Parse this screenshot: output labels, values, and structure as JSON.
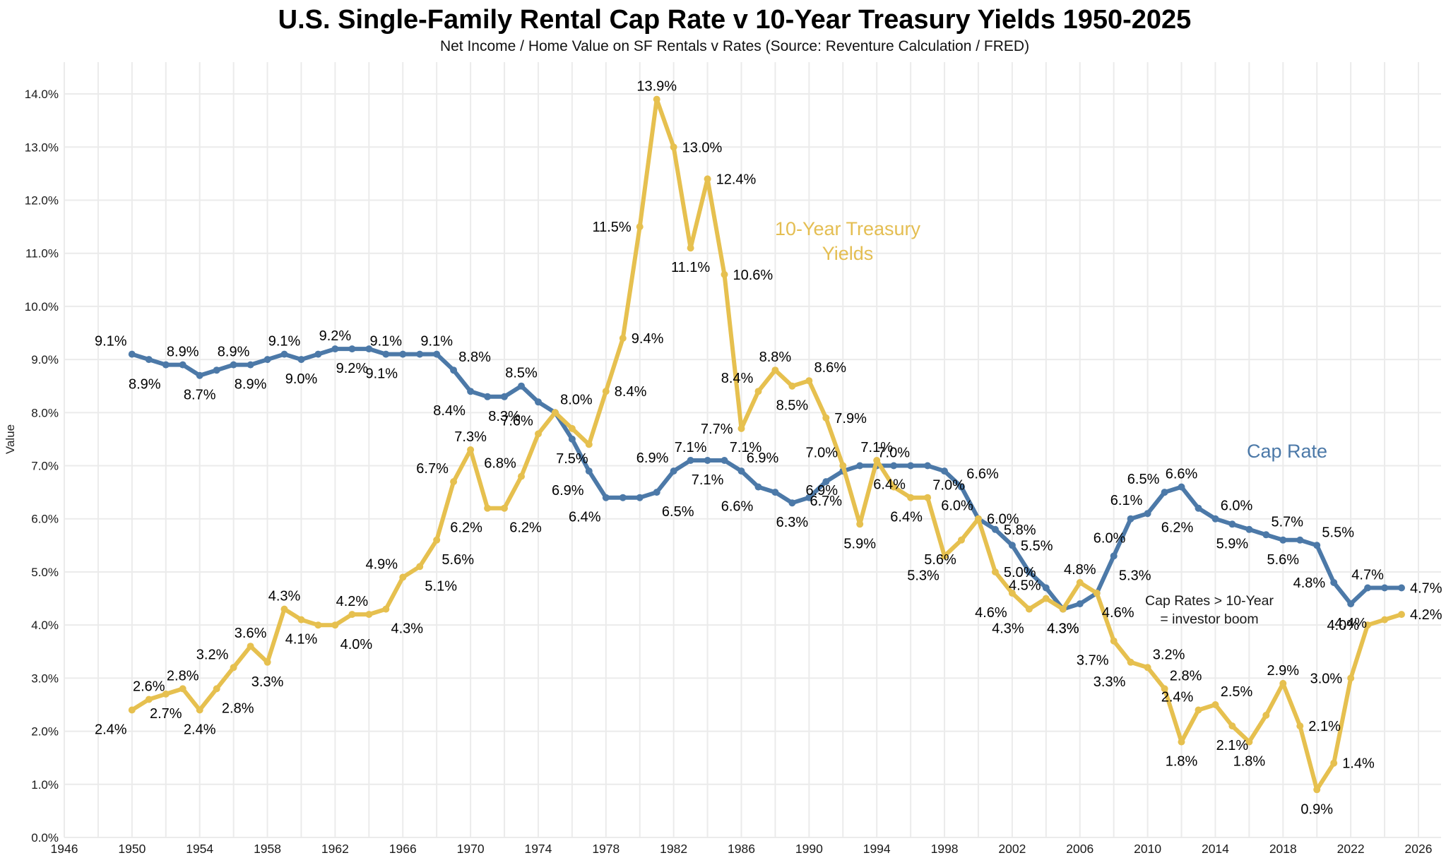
{
  "chart_data": {
    "type": "line",
    "title": "U.S. Single-Family Rental Cap Rate v 10-Year Treasury Yields 1950-2025",
    "subtitle": "Net Income / Home Value on SF Rentals v Rates (Source: Reventure Calculation / FRED)",
    "xlabel": "",
    "ylabel": "Value",
    "xlim": [
      1946,
      2026
    ],
    "ylim": [
      0,
      14.6
    ],
    "grid": true,
    "x_ticks": [
      1946,
      1950,
      1954,
      1958,
      1962,
      1966,
      1970,
      1974,
      1978,
      1982,
      1986,
      1990,
      1994,
      1998,
      2002,
      2006,
      2010,
      2014,
      2018,
      2022,
      2026
    ],
    "x_minor_grid_step_years": 2,
    "y_tick_labels": [
      "0.0%",
      "1.0%",
      "2.0%",
      "3.0%",
      "4.0%",
      "5.0%",
      "6.0%",
      "7.0%",
      "8.0%",
      "9.0%",
      "10.0%",
      "11.0%",
      "12.0%",
      "13.0%",
      "14.0%"
    ],
    "grid_color": "#EBEBEB",
    "points_format": [
      "year",
      "value",
      "label",
      "label_position"
    ],
    "series": [
      {
        "name": "Cap Rate",
        "color": "#4C79A8",
        "points": [
          [
            1950,
            9.1,
            "9.1%",
            "above-left"
          ],
          [
            1951,
            9.0,
            null,
            null
          ],
          [
            1952,
            8.9,
            "8.9%",
            "below-left"
          ],
          [
            1953,
            8.9,
            "8.9%",
            "above"
          ],
          [
            1954,
            8.7,
            "8.7%",
            "below"
          ],
          [
            1955,
            8.8,
            null,
            null
          ],
          [
            1956,
            8.9,
            "8.9%",
            "above"
          ],
          [
            1957,
            8.9,
            "8.9%",
            "below"
          ],
          [
            1958,
            9.0,
            null,
            null
          ],
          [
            1959,
            9.1,
            "9.1%",
            "above"
          ],
          [
            1960,
            9.0,
            "9.0%",
            "below"
          ],
          [
            1961,
            9.1,
            null,
            null
          ],
          [
            1962,
            9.2,
            "9.2%",
            "above"
          ],
          [
            1963,
            9.2,
            "9.2%",
            "below"
          ],
          [
            1964,
            9.2,
            null,
            null
          ],
          [
            1965,
            9.1,
            "9.1%",
            "above"
          ],
          [
            1966,
            9.1,
            "9.1%",
            "below-left"
          ],
          [
            1967,
            9.1,
            null,
            null
          ],
          [
            1968,
            9.1,
            "9.1%",
            "above"
          ],
          [
            1969,
            8.8,
            "8.8%",
            "above-right"
          ],
          [
            1970,
            8.4,
            "8.4%",
            "below-left"
          ],
          [
            1971,
            8.3,
            null,
            null
          ],
          [
            1972,
            8.3,
            "8.3%",
            "below"
          ],
          [
            1973,
            8.5,
            "8.5%",
            "above"
          ],
          [
            1974,
            8.2,
            null,
            null
          ],
          [
            1975,
            8.0,
            "8.0%",
            "above-right"
          ],
          [
            1976,
            7.5,
            "7.5%",
            "below"
          ],
          [
            1977,
            6.9,
            "6.9%",
            "below-left"
          ],
          [
            1978,
            6.4,
            "6.4%",
            "below-left"
          ],
          [
            1979,
            6.4,
            null,
            null
          ],
          [
            1980,
            6.4,
            null,
            null
          ],
          [
            1981,
            6.5,
            "6.5%",
            "below-right"
          ],
          [
            1982,
            6.9,
            "6.9%",
            "above-left"
          ],
          [
            1983,
            7.1,
            "7.1%",
            "above"
          ],
          [
            1984,
            7.1,
            "7.1%",
            "below"
          ],
          [
            1985,
            7.1,
            "7.1%",
            "above-right"
          ],
          [
            1986,
            6.9,
            "6.9%",
            "above-right"
          ],
          [
            1987,
            6.6,
            "6.6%",
            "below-left"
          ],
          [
            1988,
            6.5,
            null,
            null
          ],
          [
            1989,
            6.3,
            "6.3%",
            "below"
          ],
          [
            1990,
            6.4,
            null,
            null
          ],
          [
            1991,
            6.7,
            "6.7%",
            "below"
          ],
          [
            1992,
            6.9,
            "6.9%",
            "below-left"
          ],
          [
            1993,
            7.0,
            null,
            null
          ],
          [
            1994,
            7.0,
            null,
            null
          ],
          [
            1995,
            7.0,
            "7.0%",
            "above"
          ],
          [
            1996,
            7.0,
            null,
            null
          ],
          [
            1997,
            7.0,
            "7.0%",
            "below-right"
          ],
          [
            1998,
            6.9,
            null,
            null
          ],
          [
            1999,
            6.6,
            "6.6%",
            "above-right"
          ],
          [
            2000,
            6.0,
            "6.0%",
            "right"
          ],
          [
            2001,
            5.8,
            "5.8%",
            "right"
          ],
          [
            2002,
            5.5,
            "5.5%",
            "right"
          ],
          [
            2003,
            5.0,
            null,
            null
          ],
          [
            2004,
            4.7,
            null,
            null
          ],
          [
            2005,
            4.3,
            "4.3%",
            "below"
          ],
          [
            2006,
            4.4,
            null,
            null
          ],
          [
            2007,
            4.6,
            null,
            null
          ],
          [
            2008,
            5.3,
            "5.3%",
            "below-right"
          ],
          [
            2009,
            6.0,
            "6.0%",
            "below-left"
          ],
          [
            2010,
            6.1,
            "6.1%",
            "above-left"
          ],
          [
            2011,
            6.5,
            "6.5%",
            "above-left"
          ],
          [
            2012,
            6.6,
            "6.6%",
            "above"
          ],
          [
            2013,
            6.2,
            "6.2%",
            "below-left"
          ],
          [
            2014,
            6.0,
            "6.0%",
            "above-right"
          ],
          [
            2015,
            5.9,
            "5.9%",
            "below"
          ],
          [
            2016,
            5.8,
            null,
            null
          ],
          [
            2017,
            5.7,
            "5.7%",
            "above-right"
          ],
          [
            2018,
            5.6,
            "5.6%",
            "below"
          ],
          [
            2019,
            5.6,
            null,
            null
          ],
          [
            2020,
            5.5,
            "5.5%",
            "above-right"
          ],
          [
            2021,
            4.8,
            "4.8%",
            "left"
          ],
          [
            2022,
            4.4,
            "4.4%",
            "below"
          ],
          [
            2023,
            4.7,
            "4.7%",
            "above"
          ],
          [
            2024,
            4.7,
            null,
            null
          ],
          [
            2025,
            4.7,
            "4.7%",
            "right"
          ]
        ]
      },
      {
        "name": "10-Year Treasury Yields",
        "color": "#E6C04F",
        "points": [
          [
            1950,
            2.4,
            "2.4%",
            "below-left"
          ],
          [
            1951,
            2.6,
            "2.6%",
            "above"
          ],
          [
            1952,
            2.7,
            "2.7%",
            "below"
          ],
          [
            1953,
            2.8,
            "2.8%",
            "above"
          ],
          [
            1954,
            2.4,
            "2.4%",
            "below"
          ],
          [
            1955,
            2.8,
            "2.8%",
            "below-right"
          ],
          [
            1956,
            3.2,
            "3.2%",
            "above-left"
          ],
          [
            1957,
            3.6,
            "3.6%",
            "above"
          ],
          [
            1958,
            3.3,
            "3.3%",
            "below"
          ],
          [
            1959,
            4.3,
            "4.3%",
            "above"
          ],
          [
            1960,
            4.1,
            "4.1%",
            "below"
          ],
          [
            1961,
            4.0,
            null,
            null
          ],
          [
            1962,
            4.0,
            "4.0%",
            "below-right"
          ],
          [
            1963,
            4.2,
            "4.2%",
            "above"
          ],
          [
            1964,
            4.2,
            null,
            null
          ],
          [
            1965,
            4.3,
            "4.3%",
            "below-right"
          ],
          [
            1966,
            4.9,
            "4.9%",
            "above-left"
          ],
          [
            1967,
            5.1,
            "5.1%",
            "below-right"
          ],
          [
            1968,
            5.6,
            "5.6%",
            "below-right"
          ],
          [
            1969,
            6.7,
            "6.7%",
            "above-left"
          ],
          [
            1970,
            7.3,
            "7.3%",
            "above"
          ],
          [
            1971,
            6.2,
            "6.2%",
            "below-left"
          ],
          [
            1972,
            6.2,
            "6.2%",
            "below-right"
          ],
          [
            1973,
            6.8,
            "6.8%",
            "above-left"
          ],
          [
            1974,
            7.6,
            "7.6%",
            "above-left"
          ],
          [
            1975,
            8.0,
            null,
            null
          ],
          [
            1976,
            7.7,
            null,
            null
          ],
          [
            1977,
            7.4,
            null,
            null
          ],
          [
            1978,
            8.4,
            "8.4%",
            "right"
          ],
          [
            1979,
            9.4,
            "9.4%",
            "right"
          ],
          [
            1980,
            11.5,
            "11.5%",
            "left"
          ],
          [
            1981,
            13.9,
            "13.9%",
            "above"
          ],
          [
            1982,
            13.0,
            "13.0%",
            "right"
          ],
          [
            1983,
            11.1,
            "11.1%",
            "below"
          ],
          [
            1984,
            12.4,
            "12.4%",
            "right"
          ],
          [
            1985,
            10.6,
            "10.6%",
            "right"
          ],
          [
            1986,
            7.7,
            "7.7%",
            "left"
          ],
          [
            1987,
            8.4,
            "8.4%",
            "above-left"
          ],
          [
            1988,
            8.8,
            "8.8%",
            "above"
          ],
          [
            1989,
            8.5,
            "8.5%",
            "below"
          ],
          [
            1990,
            8.6,
            "8.6%",
            "above-right"
          ],
          [
            1991,
            7.9,
            "7.9%",
            "right"
          ],
          [
            1992,
            7.0,
            "7.0%",
            "above-left"
          ],
          [
            1993,
            5.9,
            "5.9%",
            "below"
          ],
          [
            1994,
            7.1,
            "7.1%",
            "above"
          ],
          [
            1995,
            6.6,
            null,
            null
          ],
          [
            1996,
            6.4,
            "6.4%",
            "above-left"
          ],
          [
            1997,
            6.4,
            "6.4%",
            "below-left"
          ],
          [
            1998,
            5.3,
            "5.3%",
            "below-left"
          ],
          [
            1999,
            5.6,
            "5.6%",
            "below-left"
          ],
          [
            2000,
            6.0,
            "6.0%",
            "above-left"
          ],
          [
            2001,
            5.0,
            "5.0%",
            "right"
          ],
          [
            2002,
            4.6,
            "4.6%",
            "below-left"
          ],
          [
            2003,
            4.3,
            "4.3%",
            "below-left"
          ],
          [
            2004,
            4.5,
            "4.5%",
            "above-left"
          ],
          [
            2005,
            4.3,
            "4.3%",
            "below"
          ],
          [
            2006,
            4.8,
            "4.8%",
            "above"
          ],
          [
            2007,
            4.6,
            "4.6%",
            "below-right"
          ],
          [
            2008,
            3.7,
            "3.7%",
            "below-left"
          ],
          [
            2009,
            3.3,
            "3.3%",
            "below-left"
          ],
          [
            2010,
            3.2,
            "3.2%",
            "above-right"
          ],
          [
            2011,
            2.8,
            "2.8%",
            "above-right"
          ],
          [
            2012,
            1.8,
            "1.8%",
            "below"
          ],
          [
            2013,
            2.4,
            "2.4%",
            "above-left"
          ],
          [
            2014,
            2.5,
            "2.5%",
            "above-right"
          ],
          [
            2015,
            2.1,
            "2.1%",
            "below"
          ],
          [
            2016,
            1.8,
            "1.8%",
            "below"
          ],
          [
            2017,
            2.3,
            null,
            null
          ],
          [
            2018,
            2.9,
            "2.9%",
            "above"
          ],
          [
            2019,
            2.1,
            "2.1%",
            "right"
          ],
          [
            2020,
            0.9,
            "0.9%",
            "below"
          ],
          [
            2021,
            1.4,
            "1.4%",
            "right"
          ],
          [
            2022,
            3.0,
            "3.0%",
            "left"
          ],
          [
            2023,
            4.0,
            "4.0%",
            "left"
          ],
          [
            2024,
            4.1,
            null,
            null
          ],
          [
            2025,
            4.2,
            "4.2%",
            "right"
          ]
        ]
      }
    ],
    "series_labels": {
      "treasury_line1": "10-Year Treasury",
      "treasury_line2": "Yields",
      "cap": "Cap Rate"
    },
    "annotation": {
      "line1": "Cap Rates > 10-Year",
      "line2": "= investor boom"
    }
  }
}
